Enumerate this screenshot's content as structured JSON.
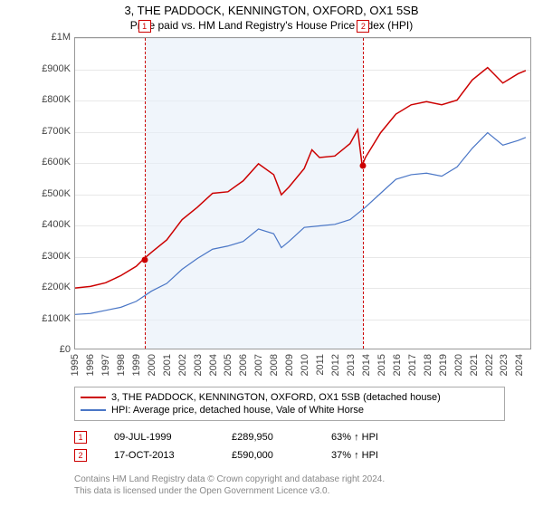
{
  "title": "3, THE PADDOCK, KENNINGTON, OXFORD, OX1 5SB",
  "subtitle": "Price paid vs. HM Land Registry's House Price Index (HPI)",
  "chart": {
    "type": "line",
    "ylim": [
      0,
      1000000
    ],
    "ytick_step": 100000,
    "ytick_labels": [
      "£0",
      "£100K",
      "£200K",
      "£300K",
      "£400K",
      "£500K",
      "£600K",
      "£700K",
      "£800K",
      "£900K",
      "£1M"
    ],
    "x_years": [
      1995,
      1996,
      1997,
      1998,
      1999,
      2000,
      2001,
      2002,
      2003,
      2004,
      2005,
      2006,
      2007,
      2008,
      2009,
      2010,
      2011,
      2012,
      2013,
      2014,
      2015,
      2016,
      2017,
      2018,
      2019,
      2020,
      2021,
      2022,
      2023,
      2024
    ],
    "grid_color": "#e8e8e8",
    "plot_border": "#999999",
    "background_color": "#ffffff",
    "shade_color": "#e6eef8",
    "shade_start_year": 1999.52,
    "shade_end_year": 2013.79,
    "marker_border": "#cc0000",
    "series": [
      {
        "name": "property",
        "color": "#cc0000",
        "width": 1.5,
        "points": [
          [
            1995,
            195000
          ],
          [
            1996,
            200000
          ],
          [
            1997,
            212000
          ],
          [
            1998,
            235000
          ],
          [
            1999,
            265000
          ],
          [
            1999.52,
            289950
          ],
          [
            2000,
            310000
          ],
          [
            2001,
            350000
          ],
          [
            2002,
            415000
          ],
          [
            2003,
            455000
          ],
          [
            2004,
            500000
          ],
          [
            2005,
            505000
          ],
          [
            2006,
            540000
          ],
          [
            2007,
            595000
          ],
          [
            2008,
            560000
          ],
          [
            2008.5,
            495000
          ],
          [
            2009,
            520000
          ],
          [
            2010,
            580000
          ],
          [
            2010.5,
            640000
          ],
          [
            2011,
            615000
          ],
          [
            2012,
            620000
          ],
          [
            2013,
            660000
          ],
          [
            2013.5,
            705000
          ],
          [
            2013.79,
            590000
          ],
          [
            2014,
            615000
          ],
          [
            2015,
            695000
          ],
          [
            2016,
            755000
          ],
          [
            2017,
            785000
          ],
          [
            2018,
            795000
          ],
          [
            2019,
            785000
          ],
          [
            2020,
            800000
          ],
          [
            2021,
            865000
          ],
          [
            2022,
            905000
          ],
          [
            2023,
            855000
          ],
          [
            2024,
            885000
          ],
          [
            2024.5,
            895000
          ]
        ]
      },
      {
        "name": "hpi",
        "color": "#4a76c6",
        "width": 1.2,
        "points": [
          [
            1995,
            110000
          ],
          [
            1996,
            113000
          ],
          [
            1997,
            123000
          ],
          [
            1998,
            133000
          ],
          [
            1999,
            152000
          ],
          [
            2000,
            185000
          ],
          [
            2001,
            210000
          ],
          [
            2002,
            255000
          ],
          [
            2003,
            290000
          ],
          [
            2004,
            320000
          ],
          [
            2005,
            330000
          ],
          [
            2006,
            345000
          ],
          [
            2007,
            385000
          ],
          [
            2008,
            370000
          ],
          [
            2008.5,
            325000
          ],
          [
            2009,
            345000
          ],
          [
            2010,
            390000
          ],
          [
            2011,
            395000
          ],
          [
            2012,
            400000
          ],
          [
            2013,
            415000
          ],
          [
            2014,
            455000
          ],
          [
            2015,
            500000
          ],
          [
            2016,
            545000
          ],
          [
            2017,
            560000
          ],
          [
            2018,
            565000
          ],
          [
            2019,
            555000
          ],
          [
            2020,
            585000
          ],
          [
            2021,
            645000
          ],
          [
            2022,
            695000
          ],
          [
            2023,
            655000
          ],
          [
            2024,
            670000
          ],
          [
            2024.5,
            680000
          ]
        ]
      }
    ],
    "sale_markers": [
      {
        "num": "1",
        "year": 1999.52,
        "price": 289950,
        "dot_color": "#cc0000"
      },
      {
        "num": "2",
        "year": 2013.79,
        "price": 590000,
        "dot_color": "#cc0000"
      }
    ]
  },
  "legend": {
    "items": [
      {
        "color": "#cc0000",
        "label": "3, THE PADDOCK, KENNINGTON, OXFORD, OX1 5SB (detached house)"
      },
      {
        "color": "#4a76c6",
        "label": "HPI: Average price, detached house, Vale of White Horse"
      }
    ]
  },
  "sales": [
    {
      "num": "1",
      "date": "09-JUL-1999",
      "price": "£289,950",
      "pct": "63% ↑ HPI"
    },
    {
      "num": "2",
      "date": "17-OCT-2013",
      "price": "£590,000",
      "pct": "37% ↑ HPI"
    }
  ],
  "footer": {
    "line1": "Contains HM Land Registry data © Crown copyright and database right 2024.",
    "line2": "This data is licensed under the Open Government Licence v3.0."
  }
}
